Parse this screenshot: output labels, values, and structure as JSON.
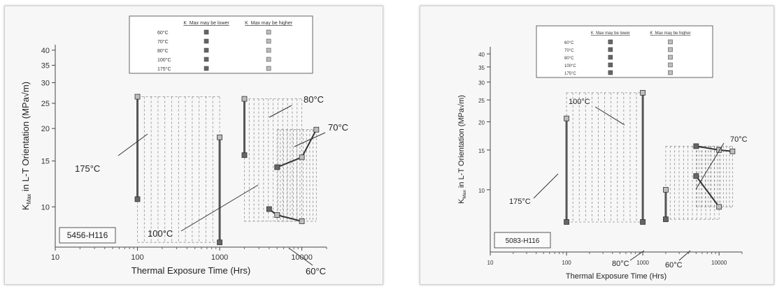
{
  "chart_data": [
    {
      "type": "line",
      "alloy_label": "5456-H116",
      "xlabel": "Thermal Exposure Time (Hrs)",
      "ylabel_main": "K",
      "ylabel_sub": "Max",
      "ylabel_rest": " in L-T Orientation (MPa√m)",
      "xscale": "log",
      "yscale": "log",
      "xlim": [
        10,
        20000
      ],
      "ylim": [
        7,
        42
      ],
      "x_ticks": [
        10,
        100,
        1000,
        10000
      ],
      "x_tick_labels": [
        "10",
        "100",
        "1000",
        "10000"
      ],
      "y_ticks": [
        10,
        15,
        20,
        25,
        30,
        35,
        40
      ],
      "y_tick_labels": [
        "10",
        "15",
        "20",
        "25",
        "30",
        "35",
        "40"
      ],
      "legend": {
        "header_lower": "K_Max may be lower",
        "header_higher": "K_Max may be higher",
        "rows": [
          "60°C",
          "70°C",
          "80°C",
          "100°C",
          "175°C"
        ]
      },
      "series": [
        {
          "name": "175°C",
          "x": [
            100,
            100
          ],
          "y": [
            10.7,
            26.5
          ]
        },
        {
          "name": "100°C",
          "x": [
            1000,
            1000
          ],
          "y": [
            7.3,
            18.5
          ]
        },
        {
          "name": "80°C",
          "x": [
            2000,
            2000
          ],
          "y": [
            15.8,
            26.0
          ]
        },
        {
          "name": "60°C",
          "x": [
            4000,
            5000,
            10000
          ],
          "y": [
            9.8,
            9.3,
            8.8
          ]
        },
        {
          "name": "70°C",
          "x": [
            5000,
            10000,
            15000
          ],
          "y": [
            14.2,
            15.5,
            19.8
          ]
        }
      ],
      "annotations": [
        {
          "text": "175°C"
        },
        {
          "text": "100°C"
        },
        {
          "text": "80°C"
        },
        {
          "text": "70°C"
        },
        {
          "text": "60°C"
        }
      ]
    },
    {
      "type": "line",
      "alloy_label": "5083-H116",
      "xlabel": "Thermal Exposure Time (Hrs)",
      "ylabel_main": "K",
      "ylabel_sub": "Max",
      "ylabel_rest": " in L-T Orientation (MPa√m)",
      "xscale": "log",
      "yscale": "log",
      "xlim": [
        10,
        20000
      ],
      "ylim": [
        5.3,
        43
      ],
      "x_ticks": [
        10,
        100,
        1000,
        10000
      ],
      "x_tick_labels": [
        "10",
        "100",
        "1000",
        "10000"
      ],
      "y_ticks": [
        10,
        15,
        20,
        25,
        30,
        35,
        40
      ],
      "y_tick_labels": [
        "10",
        "15",
        "20",
        "25",
        "30",
        "35",
        "40"
      ],
      "legend": {
        "header_lower": "K_Max may be lower",
        "header_higher": "K_Max may be higher",
        "rows": [
          "60°C",
          "70°C",
          "80°C",
          "100°C",
          "175°C"
        ]
      },
      "series": [
        {
          "name": "175°C",
          "x": [
            100,
            100
          ],
          "y": [
            7.2,
            20.7
          ]
        },
        {
          "name": "100°C",
          "x": [
            1000,
            1000
          ],
          "y": [
            7.2,
            26.9
          ]
        },
        {
          "name": "80°C",
          "x": [
            2000,
            2000
          ],
          "y": [
            7.4,
            10.0
          ]
        },
        {
          "name": "60°C",
          "x": [
            5000,
            10000
          ],
          "y": [
            11.5,
            8.4
          ]
        },
        {
          "name": "70°C",
          "x": [
            5000,
            10000,
            15000
          ],
          "y": [
            15.6,
            15.0,
            14.8
          ]
        }
      ],
      "annotations": [
        {
          "text": "100°C"
        },
        {
          "text": "175°C"
        },
        {
          "text": "80°C"
        },
        {
          "text": "60°C"
        },
        {
          "text": "70°C"
        }
      ]
    }
  ],
  "colors": {
    "line": "#333333",
    "hatch": "#8a8a8a",
    "marker_fill": "#666666",
    "marker_light": "#bdbdbd"
  }
}
